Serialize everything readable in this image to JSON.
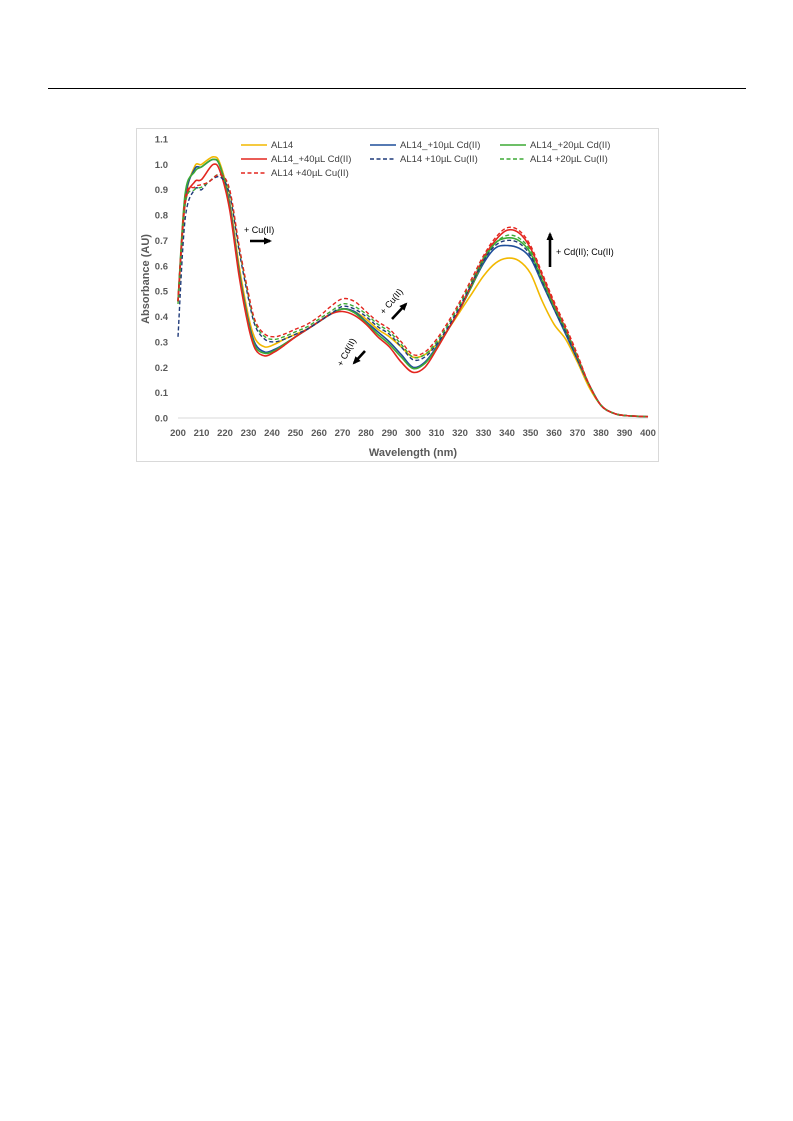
{
  "chart_data": {
    "type": "line",
    "xlabel": "Wavelength (nm)",
    "ylabel": "Absorbance (AU)",
    "xlim": [
      200,
      400
    ],
    "ylim": [
      0,
      1.1
    ],
    "x_ticks": [
      "200",
      "210",
      "220",
      "230",
      "240",
      "250",
      "260",
      "270",
      "280",
      "290",
      "300",
      "310",
      "320",
      "330",
      "340",
      "350",
      "360",
      "370",
      "380",
      "390",
      "400"
    ],
    "y_ticks": [
      "0.0",
      "0.1",
      "0.2",
      "0.3",
      "0.4",
      "0.5",
      "0.6",
      "0.7",
      "0.8",
      "0.9",
      "1.0",
      "1.1"
    ],
    "grid": false,
    "legend_position": "top",
    "series": [
      {
        "name": "AL14",
        "color": "#F2B800",
        "dash": "solid",
        "points": [
          [
            200,
            0.46
          ],
          [
            203,
            0.85
          ],
          [
            207,
            0.99
          ],
          [
            210,
            1.0
          ],
          [
            215,
            1.03
          ],
          [
            218,
            1.0
          ],
          [
            222,
            0.85
          ],
          [
            226,
            0.6
          ],
          [
            230,
            0.4
          ],
          [
            233,
            0.31
          ],
          [
            237,
            0.28
          ],
          [
            241,
            0.29
          ],
          [
            245,
            0.31
          ],
          [
            250,
            0.33
          ],
          [
            255,
            0.35
          ],
          [
            260,
            0.38
          ],
          [
            265,
            0.41
          ],
          [
            270,
            0.43
          ],
          [
            275,
            0.42
          ],
          [
            280,
            0.39
          ],
          [
            285,
            0.35
          ],
          [
            290,
            0.32
          ],
          [
            295,
            0.28
          ],
          [
            300,
            0.24
          ],
          [
            305,
            0.25
          ],
          [
            310,
            0.29
          ],
          [
            315,
            0.35
          ],
          [
            320,
            0.42
          ],
          [
            325,
            0.49
          ],
          [
            330,
            0.56
          ],
          [
            335,
            0.61
          ],
          [
            340,
            0.63
          ],
          [
            345,
            0.62
          ],
          [
            350,
            0.57
          ],
          [
            355,
            0.46
          ],
          [
            360,
            0.37
          ],
          [
            365,
            0.31
          ],
          [
            370,
            0.22
          ],
          [
            375,
            0.12
          ],
          [
            380,
            0.05
          ],
          [
            385,
            0.02
          ],
          [
            390,
            0.01
          ],
          [
            400,
            0.005
          ]
        ]
      },
      {
        "name": "AL14_+10µL Cd(II)",
        "color": "#1F4E9A",
        "dash": "solid",
        "points": [
          [
            200,
            0.46
          ],
          [
            203,
            0.86
          ],
          [
            207,
            0.98
          ],
          [
            210,
            0.99
          ],
          [
            215,
            1.02
          ],
          [
            218,
            0.99
          ],
          [
            222,
            0.84
          ],
          [
            226,
            0.58
          ],
          [
            230,
            0.38
          ],
          [
            233,
            0.29
          ],
          [
            237,
            0.26
          ],
          [
            241,
            0.27
          ],
          [
            245,
            0.29
          ],
          [
            250,
            0.32
          ],
          [
            255,
            0.35
          ],
          [
            260,
            0.38
          ],
          [
            265,
            0.41
          ],
          [
            270,
            0.43
          ],
          [
            275,
            0.42
          ],
          [
            280,
            0.38
          ],
          [
            285,
            0.34
          ],
          [
            290,
            0.3
          ],
          [
            295,
            0.25
          ],
          [
            300,
            0.2
          ],
          [
            305,
            0.22
          ],
          [
            310,
            0.28
          ],
          [
            315,
            0.35
          ],
          [
            320,
            0.43
          ],
          [
            325,
            0.52
          ],
          [
            330,
            0.61
          ],
          [
            335,
            0.67
          ],
          [
            340,
            0.68
          ],
          [
            345,
            0.67
          ],
          [
            350,
            0.63
          ],
          [
            355,
            0.53
          ],
          [
            360,
            0.43
          ],
          [
            365,
            0.33
          ],
          [
            370,
            0.23
          ],
          [
            375,
            0.13
          ],
          [
            380,
            0.05
          ],
          [
            385,
            0.02
          ],
          [
            390,
            0.01
          ],
          [
            400,
            0.005
          ]
        ]
      },
      {
        "name": "AL14_+20µL Cd(II)",
        "color": "#3DAA35",
        "dash": "solid",
        "points": [
          [
            200,
            0.46
          ],
          [
            203,
            0.88
          ],
          [
            207,
            0.97
          ],
          [
            210,
            0.99
          ],
          [
            215,
            1.02
          ],
          [
            218,
            0.99
          ],
          [
            222,
            0.83
          ],
          [
            226,
            0.57
          ],
          [
            230,
            0.37
          ],
          [
            233,
            0.28
          ],
          [
            237,
            0.255
          ],
          [
            241,
            0.265
          ],
          [
            245,
            0.29
          ],
          [
            250,
            0.32
          ],
          [
            255,
            0.35
          ],
          [
            260,
            0.38
          ],
          [
            265,
            0.41
          ],
          [
            270,
            0.43
          ],
          [
            275,
            0.415
          ],
          [
            280,
            0.375
          ],
          [
            285,
            0.33
          ],
          [
            290,
            0.29
          ],
          [
            295,
            0.24
          ],
          [
            300,
            0.195
          ],
          [
            305,
            0.215
          ],
          [
            310,
            0.275
          ],
          [
            315,
            0.35
          ],
          [
            320,
            0.43
          ],
          [
            325,
            0.52
          ],
          [
            330,
            0.62
          ],
          [
            335,
            0.69
          ],
          [
            340,
            0.71
          ],
          [
            345,
            0.7
          ],
          [
            350,
            0.65
          ],
          [
            355,
            0.54
          ],
          [
            360,
            0.44
          ],
          [
            365,
            0.34
          ],
          [
            370,
            0.24
          ],
          [
            375,
            0.13
          ],
          [
            380,
            0.05
          ],
          [
            385,
            0.02
          ],
          [
            390,
            0.01
          ],
          [
            400,
            0.005
          ]
        ]
      },
      {
        "name": "AL14_+40µL Cd(II)",
        "color": "#E3261F",
        "dash": "solid",
        "points": [
          [
            200,
            0.46
          ],
          [
            203,
            0.84
          ],
          [
            207,
            0.93
          ],
          [
            210,
            0.94
          ],
          [
            215,
            1.0
          ],
          [
            218,
            0.97
          ],
          [
            222,
            0.82
          ],
          [
            226,
            0.56
          ],
          [
            230,
            0.36
          ],
          [
            233,
            0.27
          ],
          [
            237,
            0.245
          ],
          [
            241,
            0.26
          ],
          [
            245,
            0.285
          ],
          [
            250,
            0.32
          ],
          [
            255,
            0.35
          ],
          [
            260,
            0.38
          ],
          [
            265,
            0.41
          ],
          [
            270,
            0.42
          ],
          [
            275,
            0.405
          ],
          [
            280,
            0.37
          ],
          [
            285,
            0.32
          ],
          [
            290,
            0.28
          ],
          [
            295,
            0.22
          ],
          [
            300,
            0.18
          ],
          [
            305,
            0.2
          ],
          [
            310,
            0.27
          ],
          [
            315,
            0.35
          ],
          [
            320,
            0.43
          ],
          [
            325,
            0.53
          ],
          [
            330,
            0.63
          ],
          [
            335,
            0.7
          ],
          [
            340,
            0.74
          ],
          [
            345,
            0.73
          ],
          [
            350,
            0.67
          ],
          [
            355,
            0.56
          ],
          [
            360,
            0.45
          ],
          [
            365,
            0.35
          ],
          [
            370,
            0.24
          ],
          [
            375,
            0.13
          ],
          [
            380,
            0.05
          ],
          [
            385,
            0.02
          ],
          [
            390,
            0.01
          ],
          [
            400,
            0.005
          ]
        ]
      },
      {
        "name": "AL14 +10µL Cu(II)",
        "color": "#1F3A7A",
        "dash": "dashed",
        "points": [
          [
            200,
            0.32
          ],
          [
            203,
            0.78
          ],
          [
            207,
            0.9
          ],
          [
            210,
            0.9
          ],
          [
            213,
            0.93
          ],
          [
            218,
            0.95
          ],
          [
            222,
            0.88
          ],
          [
            226,
            0.66
          ],
          [
            230,
            0.47
          ],
          [
            233,
            0.36
          ],
          [
            237,
            0.31
          ],
          [
            241,
            0.3
          ],
          [
            245,
            0.31
          ],
          [
            250,
            0.33
          ],
          [
            255,
            0.35
          ],
          [
            260,
            0.38
          ],
          [
            265,
            0.41
          ],
          [
            270,
            0.44
          ],
          [
            275,
            0.43
          ],
          [
            280,
            0.4
          ],
          [
            285,
            0.36
          ],
          [
            290,
            0.33
          ],
          [
            295,
            0.28
          ],
          [
            300,
            0.23
          ],
          [
            305,
            0.24
          ],
          [
            310,
            0.29
          ],
          [
            315,
            0.36
          ],
          [
            320,
            0.44
          ],
          [
            325,
            0.53
          ],
          [
            330,
            0.62
          ],
          [
            335,
            0.68
          ],
          [
            340,
            0.7
          ],
          [
            345,
            0.69
          ],
          [
            350,
            0.64
          ],
          [
            355,
            0.54
          ],
          [
            360,
            0.43
          ],
          [
            365,
            0.34
          ],
          [
            370,
            0.23
          ],
          [
            375,
            0.13
          ],
          [
            380,
            0.05
          ],
          [
            385,
            0.02
          ],
          [
            390,
            0.01
          ],
          [
            400,
            0.005
          ]
        ]
      },
      {
        "name": "AL14 +20µL Cu(II)",
        "color": "#3DAA35",
        "dash": "dashed",
        "points": [
          [
            200,
            0.45
          ],
          [
            203,
            0.84
          ],
          [
            207,
            0.9
          ],
          [
            210,
            0.91
          ],
          [
            213,
            0.93
          ],
          [
            218,
            0.96
          ],
          [
            222,
            0.89
          ],
          [
            226,
            0.67
          ],
          [
            230,
            0.48
          ],
          [
            233,
            0.37
          ],
          [
            237,
            0.32
          ],
          [
            241,
            0.31
          ],
          [
            245,
            0.32
          ],
          [
            250,
            0.34
          ],
          [
            255,
            0.36
          ],
          [
            260,
            0.39
          ],
          [
            265,
            0.42
          ],
          [
            270,
            0.45
          ],
          [
            275,
            0.44
          ],
          [
            280,
            0.41
          ],
          [
            285,
            0.37
          ],
          [
            290,
            0.34
          ],
          [
            295,
            0.29
          ],
          [
            300,
            0.24
          ],
          [
            305,
            0.25
          ],
          [
            310,
            0.3
          ],
          [
            315,
            0.37
          ],
          [
            320,
            0.45
          ],
          [
            325,
            0.54
          ],
          [
            330,
            0.63
          ],
          [
            335,
            0.69
          ],
          [
            340,
            0.72
          ],
          [
            345,
            0.71
          ],
          [
            350,
            0.66
          ],
          [
            355,
            0.55
          ],
          [
            360,
            0.44
          ],
          [
            365,
            0.35
          ],
          [
            370,
            0.24
          ],
          [
            375,
            0.13
          ],
          [
            380,
            0.05
          ],
          [
            385,
            0.02
          ],
          [
            390,
            0.01
          ],
          [
            400,
            0.005
          ]
        ]
      },
      {
        "name": "AL14 +40µL Cu(II)",
        "color": "#E3261F",
        "dash": "dashed",
        "points": [
          [
            200,
            0.46
          ],
          [
            203,
            0.86
          ],
          [
            207,
            0.91
          ],
          [
            210,
            0.92
          ],
          [
            213,
            0.93
          ],
          [
            218,
            0.96
          ],
          [
            222,
            0.9
          ],
          [
            226,
            0.68
          ],
          [
            230,
            0.49
          ],
          [
            233,
            0.38
          ],
          [
            237,
            0.33
          ],
          [
            241,
            0.32
          ],
          [
            245,
            0.33
          ],
          [
            250,
            0.35
          ],
          [
            255,
            0.37
          ],
          [
            260,
            0.4
          ],
          [
            265,
            0.44
          ],
          [
            270,
            0.47
          ],
          [
            275,
            0.46
          ],
          [
            280,
            0.42
          ],
          [
            285,
            0.38
          ],
          [
            290,
            0.35
          ],
          [
            295,
            0.3
          ],
          [
            300,
            0.25
          ],
          [
            305,
            0.26
          ],
          [
            310,
            0.31
          ],
          [
            315,
            0.38
          ],
          [
            320,
            0.46
          ],
          [
            325,
            0.55
          ],
          [
            330,
            0.64
          ],
          [
            335,
            0.71
          ],
          [
            340,
            0.75
          ],
          [
            345,
            0.74
          ],
          [
            350,
            0.68
          ],
          [
            355,
            0.57
          ],
          [
            360,
            0.46
          ],
          [
            365,
            0.36
          ],
          [
            370,
            0.25
          ],
          [
            375,
            0.13
          ],
          [
            380,
            0.05
          ],
          [
            385,
            0.02
          ],
          [
            390,
            0.01
          ],
          [
            400,
            0.005
          ]
        ]
      }
    ],
    "annotations": [
      {
        "text": "+ Cu(II)",
        "arrow": "right"
      },
      {
        "text": "+ Cu(II)",
        "arrow": "up-right"
      },
      {
        "text": "+ Cd(II)",
        "arrow": "down-left"
      },
      {
        "text": "+ Cd(II); Cu(II)",
        "arrow": "up"
      }
    ]
  }
}
